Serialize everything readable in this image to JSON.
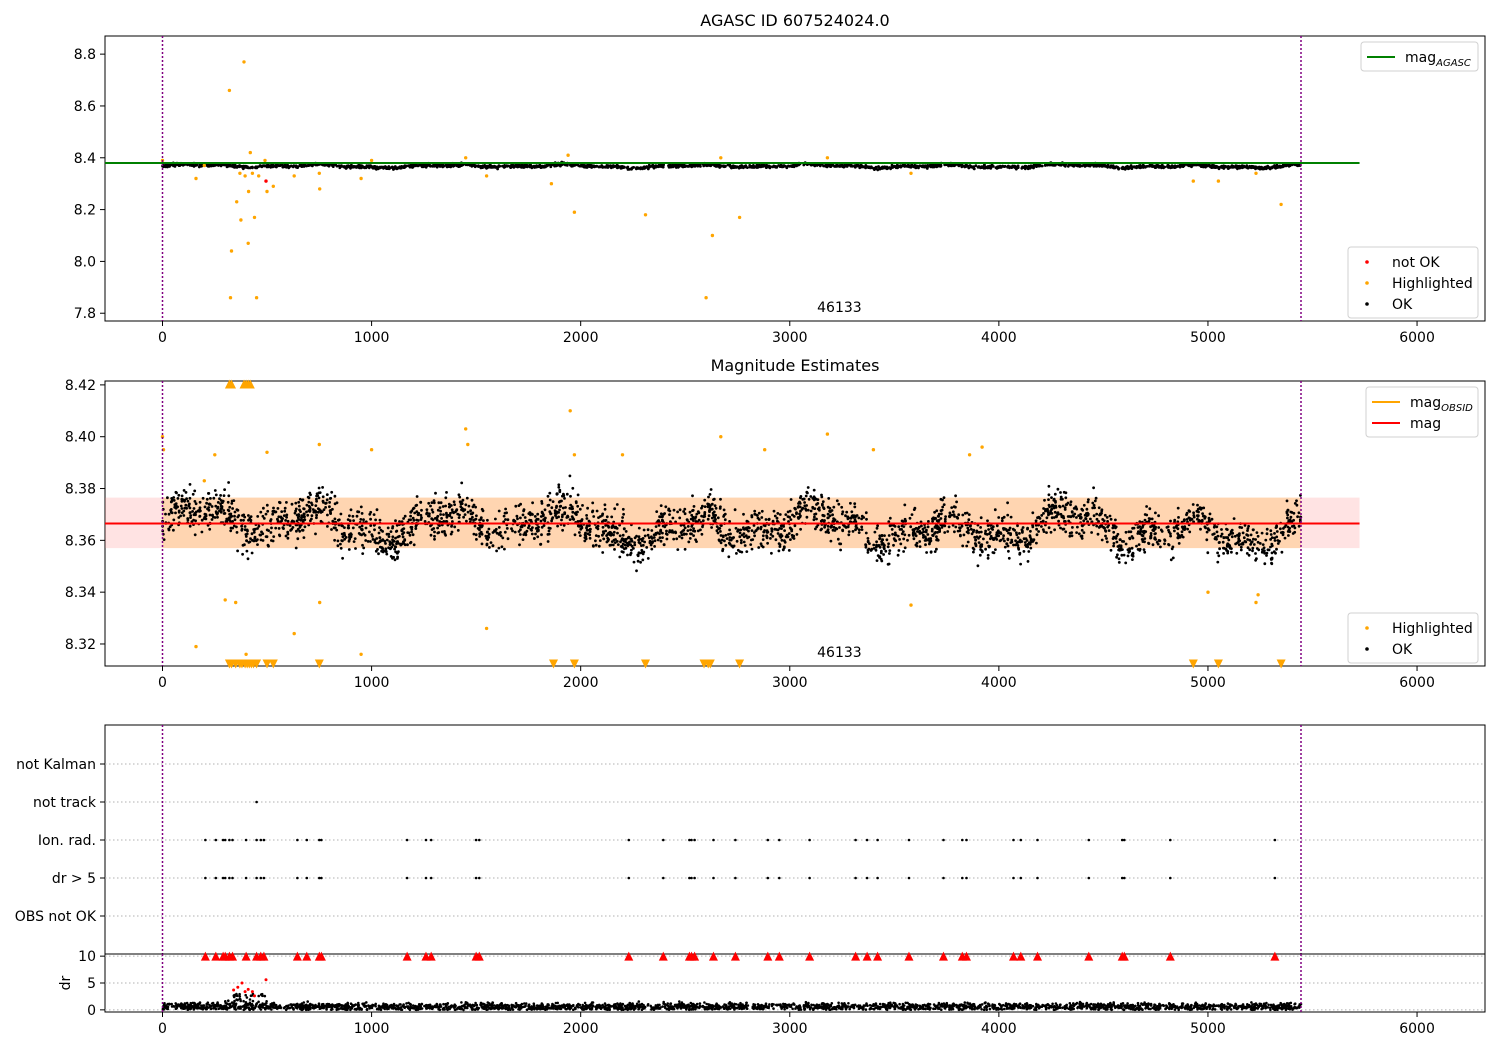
{
  "figure": {
    "background": "#ffffff"
  },
  "chart_data": [
    {
      "type": "scatter",
      "title": "AGASC ID 607524024.0",
      "xlim": [
        -275,
        6325
      ],
      "ylim": [
        7.77,
        8.87
      ],
      "xticks": [
        0,
        1000,
        2000,
        3000,
        4000,
        5000,
        6000
      ],
      "yticks": [
        7.8,
        8.0,
        8.2,
        8.4,
        8.6,
        8.8
      ],
      "ytick_labels": [
        "7.8",
        "8.0",
        "8.2",
        "8.4",
        "8.6",
        "8.8"
      ],
      "grid": false,
      "boundaries_x": [
        0,
        5445
      ],
      "boundary_color": "#800080",
      "obsid_annotation": {
        "text": "46133",
        "x": 2600,
        "y": 7.8
      },
      "agasc_mag_line": {
        "y": 8.38,
        "x_range": [
          -275,
          5725
        ],
        "color": "#008000"
      },
      "legend_top": {
        "placement": "upper right",
        "entries": [
          {
            "label": "mag",
            "sub": "AGASC",
            "color": "#008000",
            "kind": "line"
          }
        ]
      },
      "legend_bottom": {
        "placement": "lower right",
        "entries": [
          {
            "label": "not OK",
            "color": "#ff0000",
            "kind": "dot"
          },
          {
            "label": "Highlighted",
            "color": "#ffa500",
            "kind": "dot"
          },
          {
            "label": "OK",
            "color": "#000000",
            "kind": "dot"
          }
        ]
      },
      "series": [
        {
          "name": "OK",
          "color": "#000000",
          "description_points": "dense band ~8.35–8.39 across x 0–5445"
        },
        {
          "name": "Highlighted",
          "color": "#ffa500",
          "points": [
            [
              0,
              8.39
            ],
            [
              160,
              8.32
            ],
            [
              200,
              8.37
            ],
            [
              320,
              8.66
            ],
            [
              330,
              8.04
            ],
            [
              325,
              7.86
            ],
            [
              355,
              8.23
            ],
            [
              370,
              8.34
            ],
            [
              375,
              8.16
            ],
            [
              390,
              8.77
            ],
            [
              395,
              8.33
            ],
            [
              410,
              8.07
            ],
            [
              412,
              8.27
            ],
            [
              420,
              8.42
            ],
            [
              430,
              8.34
            ],
            [
              440,
              8.17
            ],
            [
              450,
              7.86
            ],
            [
              460,
              8.33
            ],
            [
              490,
              8.39
            ],
            [
              500,
              8.27
            ],
            [
              530,
              8.29
            ],
            [
              630,
              8.33
            ],
            [
              750,
              8.34
            ],
            [
              752,
              8.28
            ],
            [
              950,
              8.32
            ],
            [
              1000,
              8.39
            ],
            [
              1450,
              8.4
            ],
            [
              1550,
              8.33
            ],
            [
              1860,
              8.3
            ],
            [
              1940,
              8.41
            ],
            [
              1970,
              8.19
            ],
            [
              2310,
              8.18
            ],
            [
              2600,
              7.86
            ],
            [
              2630,
              8.1
            ],
            [
              2670,
              8.4
            ],
            [
              2760,
              8.17
            ],
            [
              3180,
              8.4
            ],
            [
              3580,
              8.34
            ],
            [
              4930,
              8.31
            ],
            [
              5050,
              8.31
            ],
            [
              5230,
              8.34
            ],
            [
              5350,
              8.22
            ]
          ]
        },
        {
          "name": "not OK",
          "color": "#ff0000",
          "points": [
            [
              495,
              8.31
            ]
          ]
        }
      ]
    },
    {
      "type": "scatter",
      "title": "Magnitude Estimates",
      "xlim": [
        -275,
        6325
      ],
      "ylim": [
        8.3115,
        8.4215
      ],
      "xticks": [
        0,
        1000,
        2000,
        3000,
        4000,
        5000,
        6000
      ],
      "yticks": [
        8.32,
        8.34,
        8.36,
        8.38,
        8.4,
        8.42
      ],
      "ytick_labels": [
        "8.32",
        "8.34",
        "8.36",
        "8.38",
        "8.40",
        "8.42"
      ],
      "grid": false,
      "boundaries_x": [
        0,
        5445
      ],
      "boundary_color": "#800080",
      "obsid_annotation": {
        "text": "46133",
        "x": 2600,
        "y": 8.3145
      },
      "mag_line": {
        "y": 8.3665,
        "x_range": [
          -275,
          5725
        ],
        "color": "#ff0000"
      },
      "mag_band": {
        "y_low": 8.357,
        "y_high": 8.3765,
        "x_range": [
          -275,
          5725
        ],
        "color": "#ff8080",
        "opacity": 0.22
      },
      "obsid_band": {
        "y_low": 8.357,
        "y_high": 8.3765,
        "x_range": [
          0,
          5445
        ],
        "color": "#ffa500",
        "opacity": 0.22
      },
      "legend_top": {
        "placement": "upper right",
        "entries": [
          {
            "label": "mag",
            "sub": "OBSID",
            "color": "#ffa500",
            "kind": "line"
          },
          {
            "label": "mag",
            "sub": "",
            "color": "#ff0000",
            "kind": "line"
          }
        ]
      },
      "legend_bottom": {
        "placement": "lower right",
        "entries": [
          {
            "label": "Highlighted",
            "color": "#ffa500",
            "kind": "dot"
          },
          {
            "label": "OK",
            "color": "#000000",
            "kind": "dot"
          }
        ]
      },
      "series": [
        {
          "name": "OK",
          "color": "#000000",
          "description_points": "dense oscillating band ~8.34–8.39 across x 0–5445"
        },
        {
          "name": "Highlighted",
          "color": "#ffa500",
          "points": [
            [
              0,
              8.4
            ],
            [
              5,
              8.395
            ],
            [
              160,
              8.319
            ],
            [
              200,
              8.383
            ],
            [
              250,
              8.393
            ],
            [
              300,
              8.337
            ],
            [
              350,
              8.336
            ],
            [
              400,
              8.316
            ],
            [
              500,
              8.394
            ],
            [
              630,
              8.324
            ],
            [
              750,
              8.397
            ],
            [
              752,
              8.336
            ],
            [
              950,
              8.316
            ],
            [
              1000,
              8.395
            ],
            [
              1450,
              8.403
            ],
            [
              1460,
              8.397
            ],
            [
              1550,
              8.326
            ],
            [
              1950,
              8.41
            ],
            [
              1970,
              8.393
            ],
            [
              2200,
              8.393
            ],
            [
              2670,
              8.4
            ],
            [
              2880,
              8.395
            ],
            [
              3180,
              8.401
            ],
            [
              3400,
              8.395
            ],
            [
              3580,
              8.335
            ],
            [
              3860,
              8.393
            ],
            [
              3920,
              8.396
            ],
            [
              5000,
              8.34
            ],
            [
              5230,
              8.336
            ],
            [
              5240,
              8.339
            ]
          ]
        },
        {
          "name": "Highlighted (off-scale high)",
          "color": "#ffa500",
          "marker": "triangle-up",
          "x": [
            320,
            330,
            390,
            400,
            410,
            420
          ]
        },
        {
          "name": "Highlighted (off-scale low)",
          "color": "#ffa500",
          "marker": "triangle-down",
          "x": [
            320,
            330,
            350,
            370,
            380,
            395,
            405,
            415,
            425,
            435,
            450,
            500,
            530,
            750,
            1870,
            1970,
            2310,
            2590,
            2610,
            2620,
            2760,
            4930,
            5050,
            5350
          ]
        }
      ]
    },
    {
      "type": "scatter",
      "title": "",
      "xlim": [
        -275,
        6325
      ],
      "yticks_categorical": [
        "OBS not OK",
        "dr > 5",
        "Ion. rad.",
        "not track",
        "not Kalman"
      ],
      "grid": true,
      "boundaries_x": [
        0,
        5445
      ],
      "flag_x": [
        205,
        255,
        290,
        300,
        320,
        335,
        400,
        450,
        470,
        485,
        645,
        690,
        750,
        760,
        1170,
        1260,
        1285,
        1500,
        1515,
        2230,
        2395,
        2520,
        2530,
        2545,
        2635,
        2740,
        2895,
        2950,
        3095,
        3315,
        3370,
        3420,
        3570,
        3735,
        3825,
        3845,
        4070,
        4105,
        4185,
        4430,
        4590,
        4600,
        4820,
        5320
      ],
      "not_track_x": [
        450
      ]
    },
    {
      "type": "scatter",
      "title": "",
      "xlim": [
        -275,
        6325
      ],
      "ylim": [
        -0.4,
        10.4
      ],
      "xticks": [
        0,
        1000,
        2000,
        3000,
        4000,
        5000,
        6000
      ],
      "yticks": [
        0,
        5,
        10
      ],
      "ytick_labels": [
        "0",
        "5",
        "10"
      ],
      "ylabel": "dr",
      "grid": true,
      "boundaries_x": [
        0,
        5445
      ],
      "series": [
        {
          "name": "OK",
          "color": "#000000",
          "description_points": "dense band around dr 0.2–1.5"
        },
        {
          "name": "not OK",
          "color": "#ff0000",
          "points": [
            [
              340,
              3.7
            ],
            [
              360,
              4.2
            ],
            [
              380,
              5.0
            ],
            [
              395,
              3.4
            ],
            [
              410,
              3.8
            ],
            [
              430,
              3.4
            ],
            [
              440,
              2.6
            ],
            [
              495,
              5.6
            ]
          ],
          "clipped_high_x": [
            205,
            255,
            290,
            300,
            320,
            335,
            400,
            450,
            470,
            485,
            645,
            690,
            750,
            760,
            1170,
            1260,
            1285,
            1500,
            1515,
            2230,
            2395,
            2520,
            2530,
            2545,
            2635,
            2740,
            2895,
            2950,
            3095,
            3315,
            3370,
            3420,
            3570,
            3735,
            3825,
            3845,
            4070,
            4105,
            4185,
            4430,
            4590,
            4600,
            4820,
            5320
          ]
        }
      ]
    }
  ]
}
